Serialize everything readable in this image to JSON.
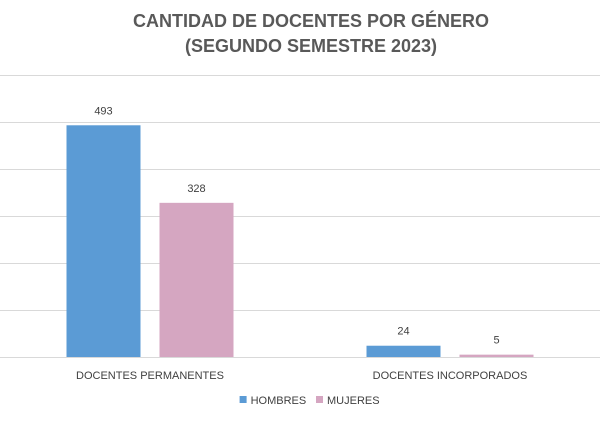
{
  "chart_data": {
    "type": "bar",
    "title": [
      "CANTIDAD DE DOCENTES POR GÉNERO",
      "(SEGUNDO SEMESTRE 2023)"
    ],
    "categories": [
      "DOCENTES PERMANENTES",
      "DOCENTES INCORPORADOS"
    ],
    "series": [
      {
        "name": "HOMBRES",
        "values": [
          493,
          24
        ],
        "color": "#5b9bd5"
      },
      {
        "name": "MUJERES",
        "values": [
          328,
          5
        ],
        "color": "#d5a6c1"
      }
    ],
    "ylim": [
      0,
      600
    ],
    "y_gridlines": [
      0,
      100,
      200,
      300,
      400,
      500,
      600
    ],
    "y_tick_labels_shown": false,
    "legend": "bottom",
    "grid": true
  }
}
